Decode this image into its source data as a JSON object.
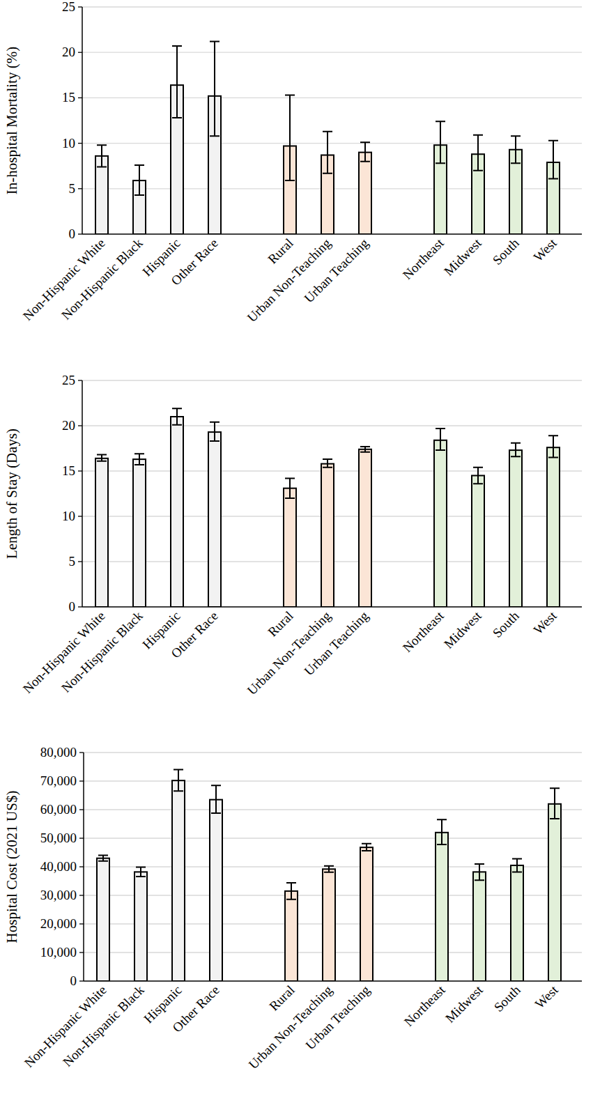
{
  "chart_data": [
    {
      "type": "bar",
      "y_label": "In-hospital Mortality (%)",
      "categories": [
        "Non-Hispanic White",
        "Non-Hispanic Black",
        "Hispanic",
        "Other Race",
        null,
        "Rural",
        "Urban Non-Teaching",
        "Urban Teaching",
        null,
        "Northeast",
        "Midwest",
        "South",
        "West"
      ],
      "values": [
        8.6,
        5.9,
        16.4,
        15.2,
        null,
        9.7,
        8.7,
        9.0,
        null,
        9.8,
        8.8,
        9.3,
        7.9
      ],
      "ci_low": [
        7.4,
        4.3,
        12.8,
        10.8,
        null,
        5.9,
        6.7,
        8.0,
        null,
        7.8,
        7.0,
        7.8,
        6.1
      ],
      "ci_high": [
        9.8,
        7.6,
        20.7,
        21.2,
        null,
        15.3,
        11.3,
        10.1,
        null,
        12.4,
        10.9,
        10.8,
        10.3
      ],
      "colors": [
        "#f2f2f2",
        "#f2f2f2",
        "#f2f2f2",
        "#f2f2f2",
        null,
        "#fbe5d6",
        "#fbe5d6",
        "#fbe5d6",
        null,
        "#e2f0d9",
        "#e2f0d9",
        "#e2f0d9",
        "#e2f0d9"
      ],
      "ylim": [
        0,
        25
      ],
      "yticks": [
        0,
        5,
        10,
        15,
        20,
        25
      ],
      "grid": true
    },
    {
      "type": "bar",
      "y_label": "Length of Stay (Days)",
      "categories": [
        "Non-Hispanic White",
        "Non-Hispanic Black",
        "Hispanic",
        "Other Race",
        null,
        "Rural",
        "Urban Non-Teaching",
        "Urban Teaching",
        null,
        "Northeast",
        "Midwest",
        "South",
        "West"
      ],
      "values": [
        16.4,
        16.3,
        21.0,
        19.3,
        null,
        13.1,
        15.8,
        17.4,
        null,
        18.4,
        14.5,
        17.3,
        17.6
      ],
      "ci_low": [
        16.1,
        15.7,
        20.1,
        18.3,
        null,
        12.0,
        15.4,
        17.1,
        null,
        17.3,
        13.6,
        16.6,
        16.5
      ],
      "ci_high": [
        16.8,
        16.9,
        21.9,
        20.4,
        null,
        14.2,
        16.3,
        17.7,
        null,
        19.7,
        15.4,
        18.1,
        18.9
      ],
      "colors": [
        "#f2f2f2",
        "#f2f2f2",
        "#f2f2f2",
        "#f2f2f2",
        null,
        "#fbe5d6",
        "#fbe5d6",
        "#fbe5d6",
        null,
        "#e2f0d9",
        "#e2f0d9",
        "#e2f0d9",
        "#e2f0d9"
      ],
      "ylim": [
        0,
        25
      ],
      "yticks": [
        0,
        5,
        10,
        15,
        20,
        25
      ],
      "grid": true
    },
    {
      "type": "bar",
      "y_label": "Hospital Cost (2021 US$)",
      "categories": [
        "Non-Hispanic White",
        "Non-Hispanic Black",
        "Hispanic",
        "Other Race",
        null,
        "Rural",
        "Urban Non-Teaching",
        "Urban Teaching",
        null,
        "Northeast",
        "Midwest",
        "South",
        "West"
      ],
      "values": [
        43000,
        38200,
        70200,
        63500,
        null,
        31500,
        39200,
        46800,
        null,
        52000,
        38200,
        40500,
        62000
      ],
      "ci_low": [
        42000,
        36600,
        66500,
        58800,
        null,
        28600,
        38100,
        45600,
        null,
        47800,
        35300,
        38200,
        56800
      ],
      "ci_high": [
        44000,
        39900,
        74000,
        68500,
        null,
        34400,
        40300,
        48100,
        null,
        56500,
        41000,
        42800,
        67500
      ],
      "colors": [
        "#f2f2f2",
        "#f2f2f2",
        "#f2f2f2",
        "#f2f2f2",
        null,
        "#fbe5d6",
        "#fbe5d6",
        "#fbe5d6",
        null,
        "#e2f0d9",
        "#e2f0d9",
        "#e2f0d9",
        "#e2f0d9"
      ],
      "ylim": [
        0,
        80000
      ],
      "yticks": [
        0,
        {
          "value": 10000,
          "label": "10,000"
        },
        {
          "value": 20000,
          "label": "20,000"
        },
        {
          "value": 30000,
          "label": "30,000"
        },
        {
          "value": 40000,
          "label": "40,000"
        },
        {
          "value": 50000,
          "label": "50,000"
        },
        {
          "value": 60000,
          "label": "60,000"
        },
        {
          "value": 70000,
          "label": "70,000"
        },
        {
          "value": 80000,
          "label": "80,000"
        }
      ],
      "grid": true
    }
  ]
}
